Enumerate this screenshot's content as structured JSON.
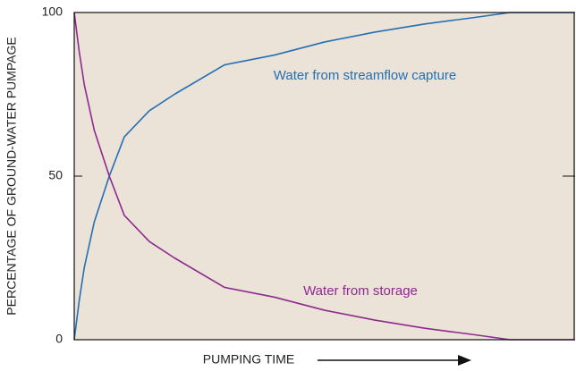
{
  "chart_data": {
    "type": "line",
    "x": [
      0,
      1,
      2,
      4,
      7,
      10,
      15,
      20,
      30,
      40,
      50,
      60,
      70,
      80,
      87,
      100
    ],
    "xlim": [
      0,
      100
    ],
    "ylim": [
      0,
      100
    ],
    "yticks": [
      0,
      50,
      100
    ],
    "ylabel": "PERCENTAGE OF GROUND-WATER PUMPAGE",
    "xlabel": "PUMPING TIME",
    "series": [
      {
        "name": "Water from streamflow capture",
        "color": "#2470b3",
        "values": [
          0,
          12,
          22,
          36,
          50,
          62,
          70,
          75,
          84,
          87,
          91,
          94,
          96.5,
          98.5,
          100,
          100
        ]
      },
      {
        "name": "Water from storage",
        "color": "#8e2a8e",
        "values": [
          100,
          88,
          78,
          64,
          50,
          38,
          30,
          25,
          16,
          13,
          9,
          6,
          3.5,
          1.5,
          0,
          0
        ]
      }
    ],
    "background": "#ebe2d8"
  }
}
